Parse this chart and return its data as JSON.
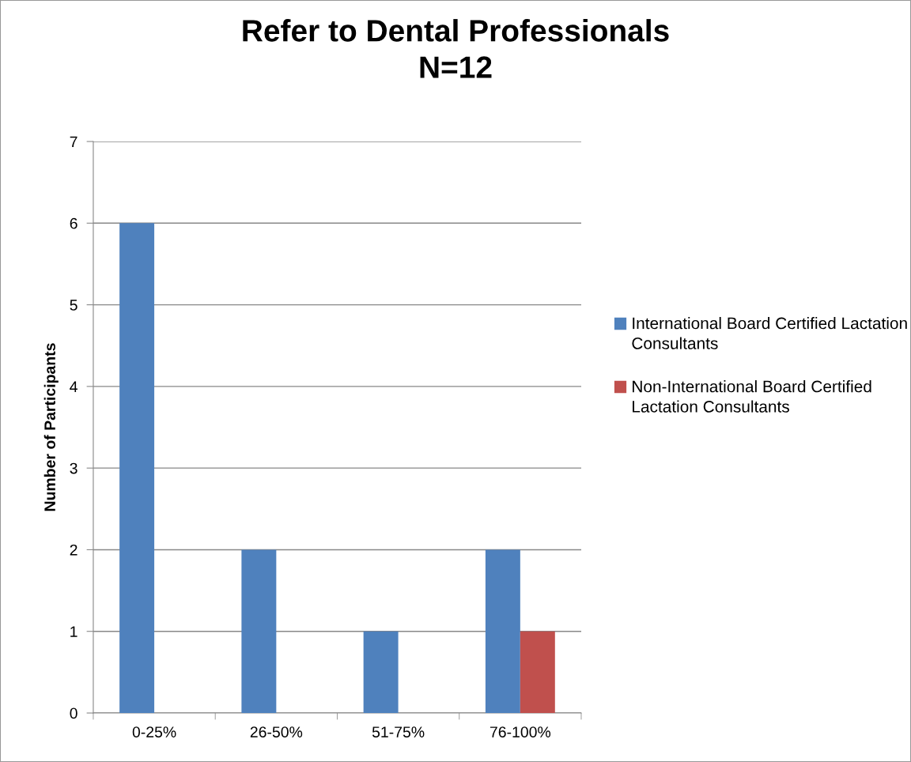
{
  "chart_data": {
    "type": "bar",
    "title": "Refer to Dental Professionals\nN=12",
    "ylabel": "Number of Participants",
    "categories": [
      "0-25%",
      "26-50%",
      "51-75%",
      "76-100%"
    ],
    "series": [
      {
        "name": "International Board Certified Lactation Consultants",
        "color": "#4f81bd",
        "values": [
          6,
          2,
          1,
          2
        ]
      },
      {
        "name": "Non-International Board Certified Lactation Consultants",
        "color": "#c0504d",
        "values": [
          0,
          0,
          0,
          1
        ]
      }
    ],
    "ylim": [
      0,
      7
    ],
    "yticks": [
      0,
      1,
      2,
      3,
      4,
      5,
      6,
      7
    ],
    "grid": "y",
    "legend": "right"
  }
}
